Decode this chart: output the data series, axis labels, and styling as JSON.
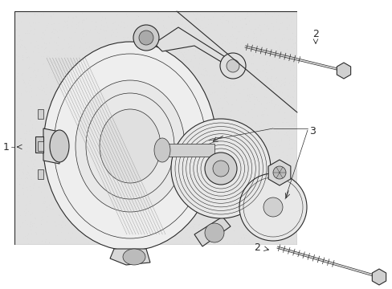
{
  "bg_color": "#ffffff",
  "box_bg": "#e8e8e8",
  "box_stipple": "#d0d0d0",
  "lc": "#2a2a2a",
  "label_fs": 9,
  "fig_w": 4.89,
  "fig_h": 3.6,
  "dpi": 100
}
